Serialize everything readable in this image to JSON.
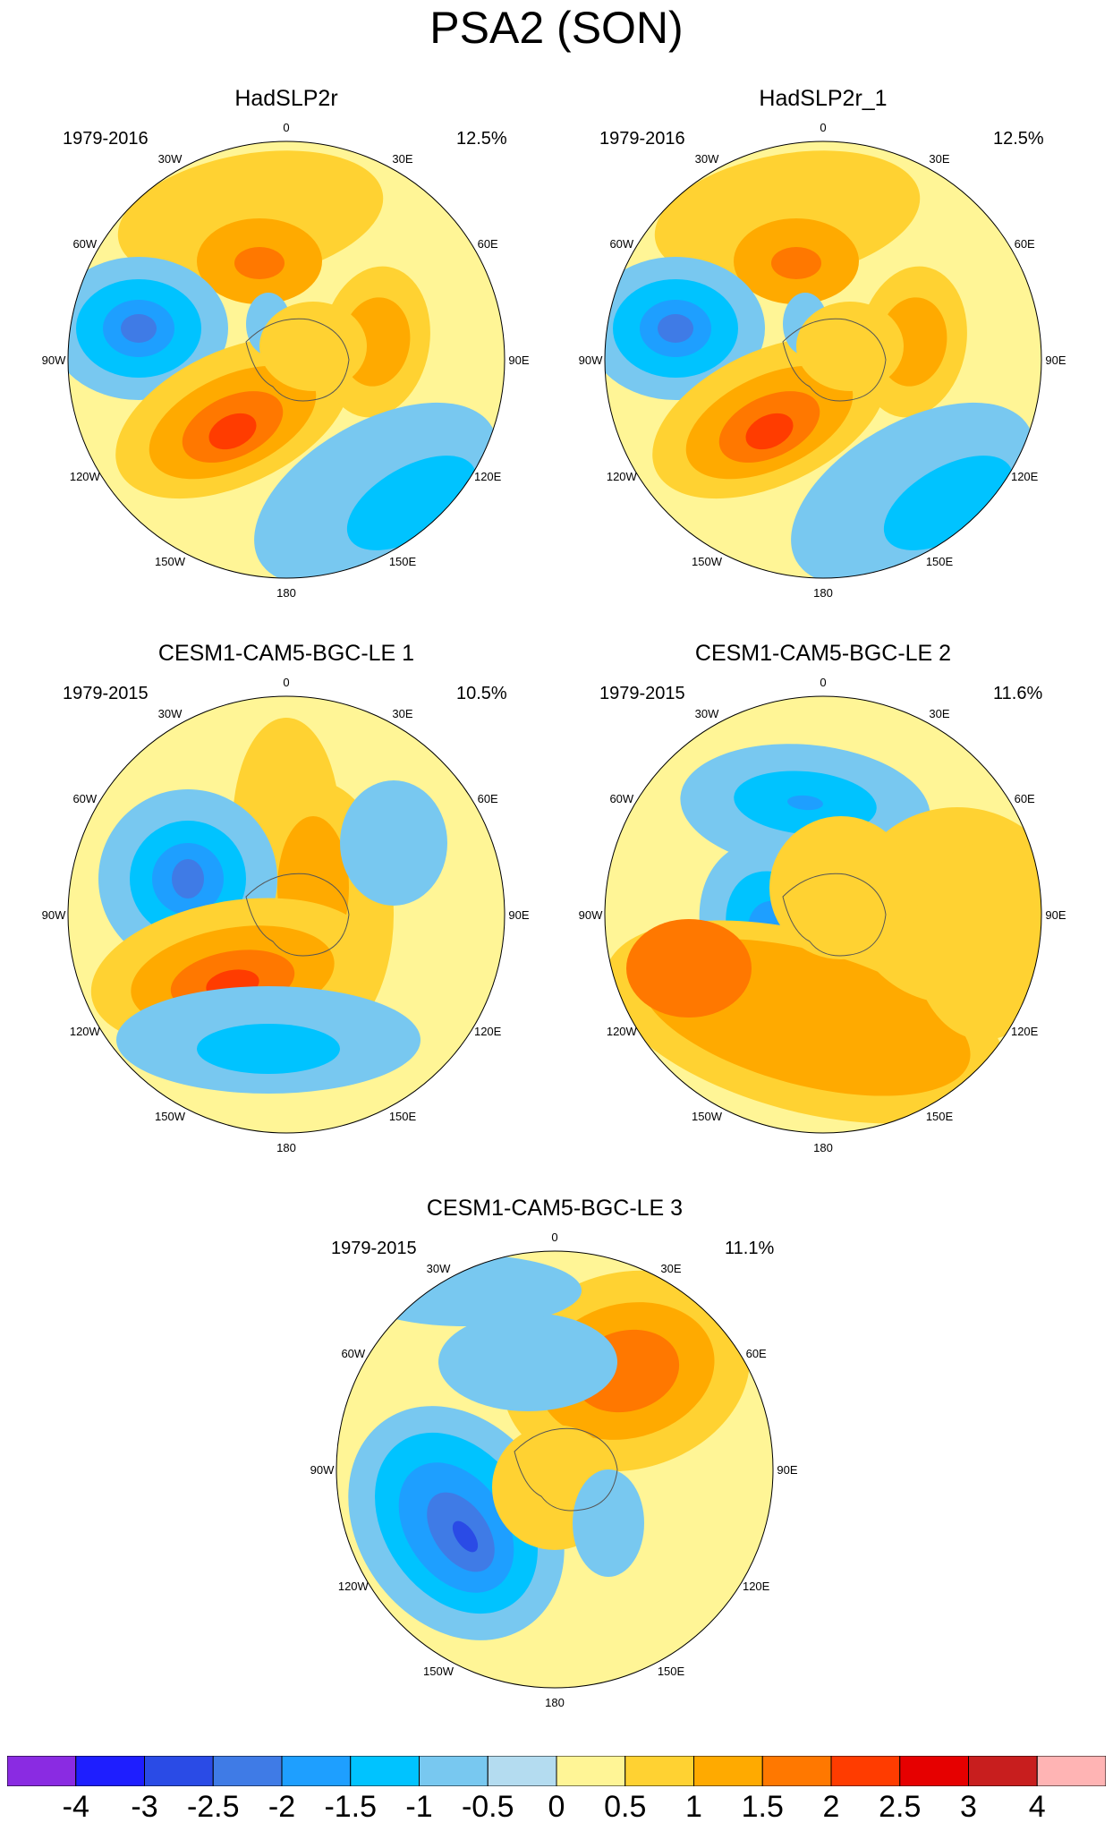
{
  "title": "PSA2 (SON)",
  "lon_labels": {
    "n": "0",
    "nne": "30E",
    "ene": "60E",
    "e": "90E",
    "ese": "120E",
    "sse": "150E",
    "s": "180",
    "ssw": "150W",
    "wsw": "120W",
    "w": "90W",
    "wnw": "60W",
    "nnw": "30W"
  },
  "panels": [
    {
      "title": "HadSLP2r",
      "period": "1979-2016",
      "variance": "12.5%"
    },
    {
      "title": "HadSLP2r_1",
      "period": "1979-2016",
      "variance": "12.5%"
    },
    {
      "title": "CESM1-CAM5-BGC-LE 1",
      "period": "1979-2015",
      "variance": "10.5%"
    },
    {
      "title": "CESM1-CAM5-BGC-LE 2",
      "period": "1979-2015",
      "variance": "11.6%"
    },
    {
      "title": "CESM1-CAM5-BGC-LE 3",
      "period": "1979-2015",
      "variance": "11.1%"
    }
  ],
  "colorbar": {
    "colors": [
      "#8a2be2",
      "#1e1eff",
      "#2a4be6",
      "#3f7be6",
      "#1e9fff",
      "#00c3ff",
      "#78c8f0",
      "#b4dcf0",
      "#fff596",
      "#ffd232",
      "#ffaa00",
      "#ff7800",
      "#ff3c00",
      "#e60000",
      "#c81e1e",
      "#ffb4b4"
    ],
    "tick_labels": [
      "-4",
      "-3",
      "-2.5",
      "-2",
      "-1.5",
      "-1",
      "-0.5",
      "0",
      "0.5",
      "1",
      "1.5",
      "2",
      "2.5",
      "3",
      "4"
    ]
  }
}
